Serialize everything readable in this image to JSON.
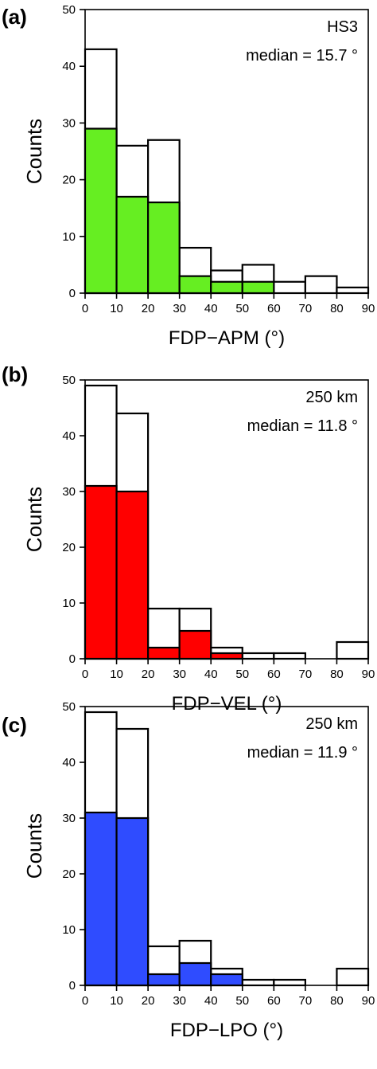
{
  "chart_data": [
    {
      "type": "bar",
      "panel_label": "(a)",
      "bin_edges": [
        0,
        10,
        20,
        30,
        40,
        50,
        60,
        70,
        80,
        90
      ],
      "series": [
        {
          "values": [
            43,
            26,
            27,
            8,
            4,
            5,
            2,
            3,
            1
          ],
          "color": "#ffffff"
        },
        {
          "values": [
            29,
            17,
            16,
            3,
            2,
            2,
            0,
            0,
            0
          ],
          "color": "#66ee22"
        }
      ],
      "xlabel": "FDP−APM (°)",
      "ylabel": "Counts",
      "xlim": [
        0,
        90
      ],
      "ylim": [
        0,
        50
      ],
      "xticks": [
        "0",
        "10",
        "20",
        "30",
        "40",
        "50",
        "60",
        "70",
        "80",
        "90"
      ],
      "yticks": [
        "0",
        "10",
        "20",
        "30",
        "40",
        "50"
      ],
      "annotations": [
        "HS3",
        "median = 15.7 °"
      ],
      "grid": false
    },
    {
      "type": "bar",
      "panel_label": "(b)",
      "bin_edges": [
        0,
        10,
        20,
        30,
        40,
        50,
        60,
        70,
        80,
        90
      ],
      "series": [
        {
          "values": [
            49,
            44,
            9,
            9,
            2,
            1,
            1,
            0,
            3
          ],
          "color": "#ffffff"
        },
        {
          "values": [
            31,
            30,
            2,
            5,
            1,
            0,
            0,
            0,
            0
          ],
          "color": "#ff0000"
        }
      ],
      "xlabel": "FDP−VEL (°)",
      "ylabel": "Counts",
      "xlim": [
        0,
        90
      ],
      "ylim": [
        0,
        50
      ],
      "xticks": [
        "0",
        "10",
        "20",
        "30",
        "40",
        "50",
        "60",
        "70",
        "80",
        "90"
      ],
      "yticks": [
        "0",
        "10",
        "20",
        "30",
        "40",
        "50"
      ],
      "annotations": [
        "250 km",
        "median = 11.8 °"
      ],
      "grid": false
    },
    {
      "type": "bar",
      "panel_label": "(c)",
      "bin_edges": [
        0,
        10,
        20,
        30,
        40,
        50,
        60,
        70,
        80,
        90
      ],
      "series": [
        {
          "values": [
            49,
            46,
            7,
            8,
            3,
            1,
            1,
            0,
            3
          ],
          "color": "#ffffff"
        },
        {
          "values": [
            31,
            30,
            2,
            4,
            2,
            0,
            0,
            0,
            0
          ],
          "color": "#2f4cff"
        }
      ],
      "xlabel": "FDP−LPO (°)",
      "ylabel": "Counts",
      "xlim": [
        0,
        90
      ],
      "ylim": [
        0,
        50
      ],
      "xticks": [
        "0",
        "10",
        "20",
        "30",
        "40",
        "50",
        "60",
        "70",
        "80",
        "90"
      ],
      "yticks": [
        "0",
        "10",
        "20",
        "30",
        "40",
        "50"
      ],
      "annotations": [
        "250 km",
        "median = 11.9 °"
      ],
      "grid": false
    }
  ]
}
